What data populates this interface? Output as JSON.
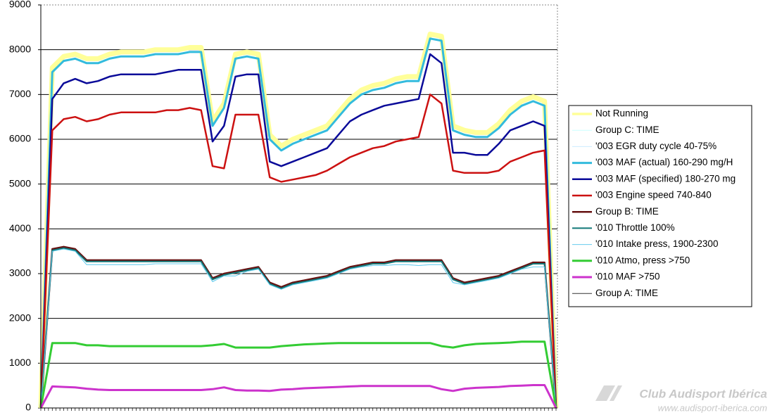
{
  "chart_data": {
    "type": "line",
    "ylim": [
      0,
      9000
    ],
    "yticks": [
      0,
      1000,
      2000,
      3000,
      4000,
      5000,
      6000,
      7000,
      8000,
      9000
    ],
    "grid": true,
    "legend": "right",
    "watermark": "Club Audisport Ibérica",
    "watermark_url": "www.audisport-iberica.com",
    "series": [
      {
        "name": "Not Running",
        "color": "#ffff99",
        "values": [
          0,
          7600,
          7850,
          7900,
          7800,
          7800,
          7900,
          7950,
          7950,
          7950,
          8000,
          8000,
          8000,
          8050,
          8050,
          6400,
          6800,
          7900,
          7950,
          7900,
          6100,
          5850,
          6000,
          6100,
          6200,
          6300,
          6600,
          6900,
          7100,
          7200,
          7250,
          7350,
          7400,
          7400,
          8350,
          8300,
          6300,
          6200,
          6150,
          6150,
          6350,
          6650,
          6850,
          6950,
          6850,
          0
        ]
      },
      {
        "name": "Group C: TIME",
        "color": "#ccffff",
        "values": [
          0,
          3500,
          3550,
          3500,
          3200,
          3200,
          3200,
          3200,
          3200,
          3200,
          3220,
          3220,
          3220,
          3220,
          3220,
          2820,
          2950,
          2950,
          3050,
          3100,
          2750,
          2650,
          2750,
          2800,
          2850,
          2900,
          3000,
          3100,
          3150,
          3180,
          3180,
          3200,
          3200,
          3180,
          3200,
          3200,
          2800,
          2750,
          2800,
          2850,
          2900,
          3000,
          3100,
          3150,
          3150,
          0
        ]
      },
      {
        "name": "'003 EGR duty cycle 40-75%",
        "color": "#ccecff",
        "values": [
          0,
          3500,
          3550,
          3500,
          3200,
          3200,
          3200,
          3200,
          3200,
          3200,
          3220,
          3220,
          3220,
          3220,
          3220,
          2820,
          2950,
          2950,
          3050,
          3100,
          2750,
          2650,
          2750,
          2800,
          2850,
          2900,
          3000,
          3100,
          3150,
          3180,
          3180,
          3200,
          3200,
          3180,
          3200,
          3200,
          2800,
          2750,
          2800,
          2850,
          2900,
          3000,
          3100,
          3150,
          3150,
          0
        ]
      },
      {
        "name": "'003 MAF (actual) 160-290 mg/H",
        "color": "#33bbdd",
        "values": [
          0,
          7500,
          7750,
          7800,
          7700,
          7700,
          7800,
          7850,
          7850,
          7850,
          7900,
          7900,
          7900,
          7950,
          7950,
          6300,
          6700,
          7800,
          7850,
          7800,
          6000,
          5750,
          5900,
          6000,
          6100,
          6200,
          6500,
          6800,
          7000,
          7100,
          7150,
          7250,
          7300,
          7300,
          8250,
          8200,
          6200,
          6100,
          6050,
          6050,
          6250,
          6550,
          6750,
          6850,
          6750,
          0
        ]
      },
      {
        "name": "'003 MAF (specified) 180-270 mg",
        "color": "#0a0a99",
        "values": [
          0,
          6900,
          7250,
          7350,
          7250,
          7300,
          7400,
          7450,
          7450,
          7450,
          7450,
          7500,
          7550,
          7550,
          7550,
          5950,
          6300,
          7400,
          7450,
          7450,
          5500,
          5400,
          5500,
          5600,
          5700,
          5800,
          6100,
          6400,
          6550,
          6650,
          6750,
          6800,
          6850,
          6900,
          7900,
          7700,
          5700,
          5700,
          5650,
          5650,
          5900,
          6200,
          6300,
          6400,
          6300,
          0
        ]
      },
      {
        "name": "'003 Engine speed 740-840",
        "color": "#cc1111",
        "values": [
          0,
          6200,
          6450,
          6500,
          6400,
          6450,
          6550,
          6600,
          6600,
          6600,
          6600,
          6650,
          6650,
          6700,
          6650,
          5400,
          5350,
          6550,
          6550,
          6550,
          5150,
          5050,
          5100,
          5150,
          5200,
          5300,
          5450,
          5600,
          5700,
          5800,
          5850,
          5950,
          6000,
          6050,
          7000,
          6800,
          5300,
          5250,
          5250,
          5250,
          5300,
          5500,
          5600,
          5700,
          5750,
          0
        ]
      },
      {
        "name": "Group B: TIME",
        "color": "#661111",
        "values": [
          0,
          3550,
          3600,
          3550,
          3300,
          3300,
          3300,
          3300,
          3300,
          3300,
          3300,
          3300,
          3300,
          3300,
          3300,
          2900,
          3000,
          3050,
          3100,
          3150,
          2800,
          2700,
          2800,
          2850,
          2900,
          2950,
          3050,
          3150,
          3200,
          3250,
          3250,
          3300,
          3300,
          3300,
          3300,
          3300,
          2900,
          2800,
          2850,
          2900,
          2950,
          3050,
          3150,
          3250,
          3250,
          0
        ]
      },
      {
        "name": "'010 Throttle 100%",
        "color": "#117777",
        "values": [
          0,
          3520,
          3570,
          3520,
          3270,
          3270,
          3270,
          3270,
          3270,
          3270,
          3270,
          3270,
          3270,
          3270,
          3270,
          2870,
          2970,
          3020,
          3070,
          3120,
          2770,
          2670,
          2770,
          2820,
          2870,
          2920,
          3020,
          3120,
          3170,
          3220,
          3220,
          3270,
          3270,
          3270,
          3270,
          3270,
          2870,
          2770,
          2820,
          2870,
          2920,
          3020,
          3120,
          3220,
          3220,
          0
        ]
      },
      {
        "name": "'010 Intake press, 1900-2300",
        "color": "#66ccee",
        "values": [
          0,
          3500,
          3550,
          3500,
          3200,
          3200,
          3200,
          3200,
          3200,
          3200,
          3220,
          3220,
          3220,
          3220,
          3220,
          2820,
          2950,
          2950,
          3050,
          3100,
          2750,
          2650,
          2750,
          2800,
          2850,
          2900,
          3000,
          3100,
          3150,
          3180,
          3180,
          3200,
          3200,
          3180,
          3200,
          3200,
          2800,
          2750,
          2800,
          2850,
          2900,
          3000,
          3100,
          3150,
          3150,
          0
        ]
      },
      {
        "name": "'010 Atmo, press >750",
        "color": "#33cc33",
        "values": [
          0,
          1450,
          1450,
          1450,
          1400,
          1400,
          1380,
          1380,
          1380,
          1380,
          1380,
          1380,
          1380,
          1380,
          1380,
          1400,
          1430,
          1350,
          1350,
          1350,
          1350,
          1380,
          1400,
          1420,
          1430,
          1440,
          1450,
          1450,
          1450,
          1450,
          1450,
          1450,
          1450,
          1450,
          1450,
          1380,
          1350,
          1400,
          1430,
          1440,
          1450,
          1460,
          1480,
          1480,
          1480,
          0
        ]
      },
      {
        "name": "'010 MAF >750",
        "color": "#cc33cc",
        "values": [
          0,
          480,
          470,
          460,
          430,
          410,
          400,
          400,
          400,
          400,
          400,
          400,
          400,
          400,
          400,
          420,
          460,
          400,
          390,
          390,
          380,
          410,
          420,
          440,
          450,
          460,
          470,
          480,
          490,
          490,
          490,
          490,
          490,
          490,
          490,
          420,
          380,
          430,
          450,
          460,
          470,
          490,
          500,
          510,
          510,
          0
        ]
      },
      {
        "name": "Group A: TIME",
        "color": "#333333",
        "values": [
          0,
          0,
          0,
          0,
          0,
          0,
          0,
          0,
          0,
          0,
          0,
          0,
          0,
          0,
          0,
          0,
          0,
          0,
          0,
          0,
          0,
          0,
          0,
          0,
          0,
          0,
          0,
          0,
          0,
          0,
          0,
          0,
          0,
          0,
          0,
          0,
          0,
          0,
          0,
          0,
          0,
          0,
          0,
          0,
          0,
          0
        ]
      }
    ]
  }
}
